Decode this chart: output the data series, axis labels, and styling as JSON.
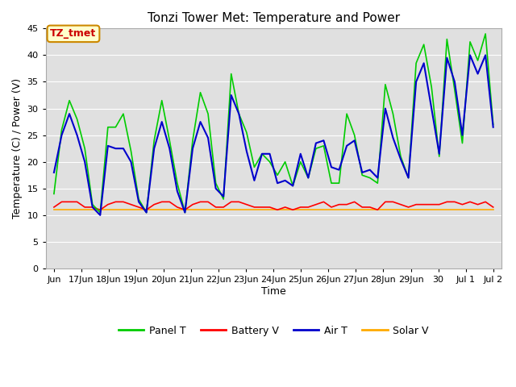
{
  "title": "Tonzi Tower Met: Temperature and Power",
  "xlabel": "Time",
  "ylabel": "Temperature (C) / Power (V)",
  "ylim": [
    0,
    45
  ],
  "yticks": [
    0,
    5,
    10,
    15,
    20,
    25,
    30,
    35,
    40,
    45
  ],
  "legend_label": "TZ_tmet",
  "series_labels": [
    "Panel T",
    "Battery V",
    "Air T",
    "Solar V"
  ],
  "series_colors": [
    "#00cc00",
    "#ff0000",
    "#0000cc",
    "#ffaa00"
  ],
  "background_color": "#ffffff",
  "plot_bg_color": "#e0e0e0",
  "grid_color": "#ffffff",
  "panel_t": [
    14.0,
    26.0,
    31.5,
    28.0,
    22.5,
    12.0,
    10.5,
    26.5,
    26.5,
    29.0,
    22.0,
    13.0,
    10.5,
    24.0,
    31.5,
    24.0,
    16.0,
    10.5,
    24.0,
    33.0,
    29.0,
    16.0,
    13.0,
    36.5,
    29.0,
    25.5,
    19.0,
    21.5,
    20.0,
    17.5,
    20.0,
    15.5,
    20.0,
    17.0,
    22.5,
    23.0,
    16.0,
    16.0,
    29.0,
    25.0,
    17.5,
    17.0,
    16.0,
    34.5,
    29.0,
    21.0,
    17.0,
    38.5,
    42.0,
    34.0,
    21.0,
    43.0,
    33.5,
    23.5,
    42.5,
    39.0,
    44.0,
    27.0
  ],
  "air_t": [
    18.0,
    25.0,
    29.0,
    25.0,
    20.0,
    11.5,
    10.0,
    23.0,
    22.5,
    22.5,
    20.0,
    12.5,
    10.5,
    22.5,
    27.5,
    22.5,
    14.5,
    10.5,
    22.5,
    27.5,
    24.5,
    15.0,
    13.5,
    32.5,
    29.0,
    22.0,
    16.5,
    21.5,
    21.5,
    16.0,
    16.5,
    15.5,
    21.5,
    17.0,
    23.5,
    24.0,
    19.0,
    18.5,
    23.0,
    24.0,
    18.0,
    18.5,
    17.0,
    30.0,
    24.5,
    20.5,
    17.0,
    35.0,
    38.5,
    30.0,
    21.5,
    39.5,
    35.0,
    25.0,
    40.0,
    36.5,
    40.0,
    26.5
  ],
  "battery_v": [
    11.5,
    12.5,
    12.5,
    12.5,
    11.5,
    11.5,
    11.0,
    12.0,
    12.5,
    12.5,
    12.0,
    11.5,
    11.0,
    12.0,
    12.5,
    12.5,
    11.5,
    11.0,
    12.0,
    12.5,
    12.5,
    11.5,
    11.5,
    12.5,
    12.5,
    12.0,
    11.5,
    11.5,
    11.5,
    11.0,
    11.5,
    11.0,
    11.5,
    11.5,
    12.0,
    12.5,
    11.5,
    12.0,
    12.0,
    12.5,
    11.5,
    11.5,
    11.0,
    12.5,
    12.5,
    12.0,
    11.5,
    12.0,
    12.0,
    12.0,
    12.0,
    12.5,
    12.5,
    12.0,
    12.5,
    12.0,
    12.5,
    11.5
  ],
  "solar_v": [
    11.0,
    11.0,
    11.0,
    11.0,
    11.0,
    11.0,
    11.0,
    11.0,
    11.0,
    11.0,
    11.0,
    11.0,
    11.0,
    11.0,
    11.0,
    11.0,
    11.0,
    11.0,
    11.0,
    11.0,
    11.0,
    11.0,
    11.0,
    11.0,
    11.0,
    11.0,
    11.0,
    11.0,
    11.0,
    11.0,
    11.0,
    11.0,
    11.0,
    11.0,
    11.0,
    11.0,
    11.0,
    11.0,
    11.0,
    11.0,
    11.0,
    11.0,
    11.0,
    11.0,
    11.0,
    11.0,
    11.0,
    11.0,
    11.0,
    11.0,
    11.0,
    11.0,
    11.0,
    11.0,
    11.0,
    11.0,
    11.0,
    11.0
  ],
  "x_tick_positions": [
    0,
    1,
    2,
    3,
    4,
    5,
    6,
    7,
    8,
    9,
    10,
    11,
    12,
    13,
    14,
    15,
    16,
    17
  ],
  "x_tick_labels": [
    "Jun",
    "17Jun",
    "18Jun",
    "19Jun",
    "20Jun",
    "21Jun",
    "22Jun",
    "23Jun",
    "24Jun",
    "25Jun",
    "26Jun",
    "27Jun",
    "28Jun",
    "29Jun",
    "30",
    "Jul 1",
    "",
    "Jul 2"
  ]
}
